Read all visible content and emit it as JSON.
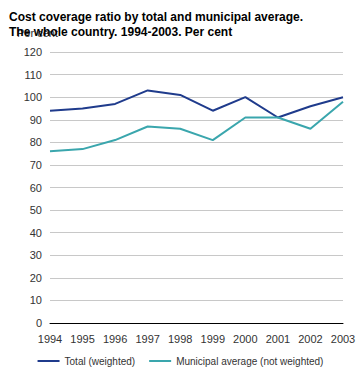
{
  "chart_data": {
    "type": "line",
    "title": "Cost coverage ratio by total and municipal average.\nThe whole country. 1994-2003. Per cent",
    "y_label": "Per cent",
    "categories": [
      "1994",
      "1995",
      "1996",
      "1997",
      "1998",
      "1999",
      "2000",
      "2001",
      "2002",
      "2003"
    ],
    "series": [
      {
        "name": "Total (weighted)",
        "color": "#1f3b8c",
        "values": [
          94,
          95,
          97,
          103,
          101,
          94,
          100,
          91,
          96,
          100
        ]
      },
      {
        "name": "Municipal average (not weighted)",
        "color": "#3aa6ad",
        "values": [
          76,
          77,
          81,
          87,
          86,
          81,
          91,
          91,
          86,
          98
        ]
      }
    ],
    "ylim": [
      0,
      120
    ],
    "yticks": [
      0,
      10,
      20,
      30,
      40,
      50,
      60,
      70,
      80,
      90,
      100,
      110,
      120
    ],
    "grid": true,
    "legend": "bottom"
  }
}
